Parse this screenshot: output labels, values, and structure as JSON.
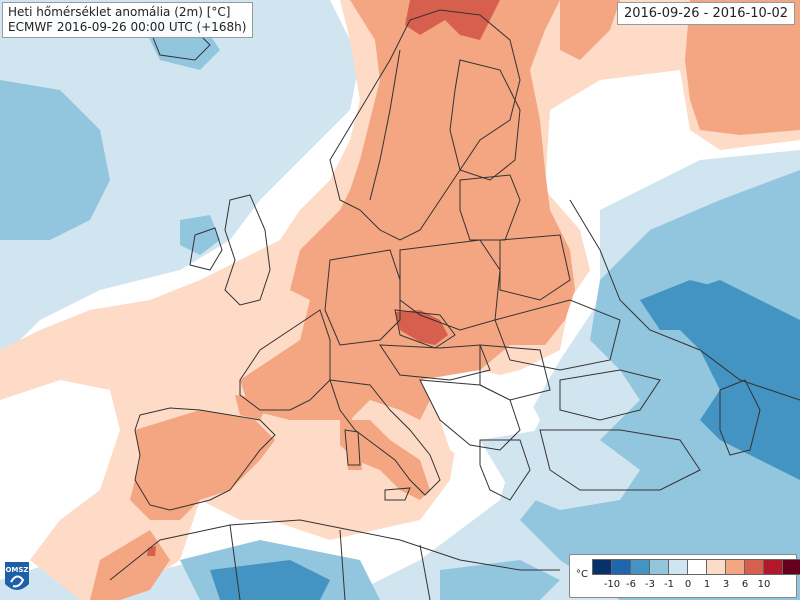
{
  "title": {
    "line1": "Heti hőmérséklet anomália (2m) [°C]",
    "line2": "ECMWF 2016-09-26 00:00 UTC (+168h)"
  },
  "period": "2016-09-26 - 2016-10-02",
  "logo": {
    "text": "OMSZ"
  },
  "legend": {
    "unit": "°C",
    "colors": [
      "#08306b",
      "#2166ac",
      "#4393c3",
      "#92c5de",
      "#d1e5f0",
      "#ffffff",
      "#fddbc7",
      "#f4a582",
      "#d6604d",
      "#b2182b",
      "#67001f"
    ],
    "ticks": [
      "-10",
      "-6",
      "-3",
      "-1",
      "0",
      "1",
      "3",
      "6",
      "10"
    ]
  },
  "palette": {
    "cold_strong": "#4393c3",
    "cold_mid": "#92c5de",
    "cold_light": "#d1e5f0",
    "neutral": "#ffffff",
    "warm_light": "#fddbc7",
    "warm_mid": "#f4a582",
    "warm_strong": "#d6604d",
    "border": "#333333"
  }
}
